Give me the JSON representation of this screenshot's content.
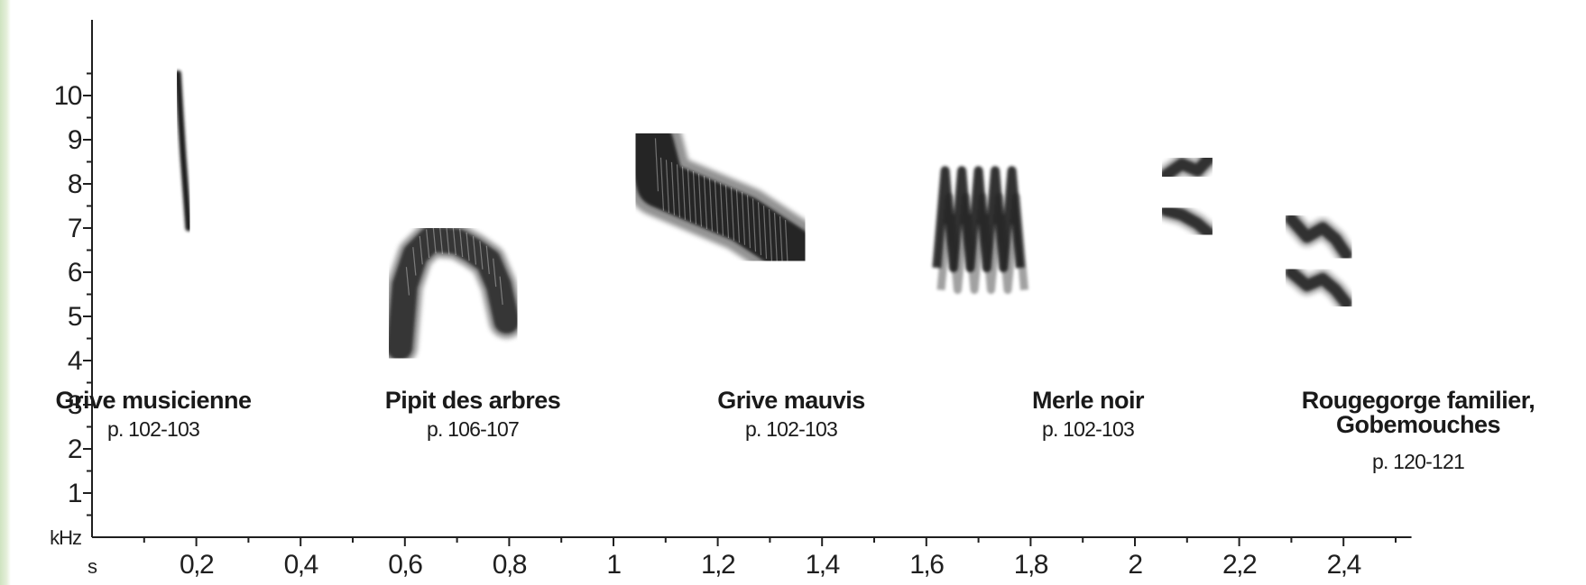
{
  "chart_data": {
    "type": "spectrogram",
    "xlabel": "s",
    "ylabel": "kHz",
    "xlim": [
      0,
      2.52
    ],
    "ylim": [
      0,
      10.5
    ],
    "x_ticks": [
      0.2,
      0.4,
      0.6,
      0.8,
      1.0,
      1.2,
      1.4,
      1.6,
      1.8,
      2.0,
      2.2,
      2.4
    ],
    "x_tick_labels": [
      "0,2",
      "0,4",
      "0,6",
      "0,8",
      "1",
      "1,2",
      "1,4",
      "1,6",
      "1,8",
      "2",
      "2,2",
      "2,4"
    ],
    "y_ticks": [
      1,
      2,
      3,
      4,
      5,
      6,
      7,
      8,
      9,
      10
    ],
    "y_tick_labels": [
      "1",
      "2",
      "3",
      "4",
      "5",
      "6",
      "7",
      "8",
      "9",
      "10"
    ],
    "grid": false,
    "series": [
      {
        "name": "Grive musicienne",
        "pages": "p. 102-103",
        "kind": "sweep",
        "points": [
          [
            0.165,
            10.5
          ],
          [
            0.17,
            9.5
          ],
          [
            0.175,
            8.6
          ],
          [
            0.18,
            7.8
          ],
          [
            0.185,
            7.0
          ]
        ],
        "width": 0.007
      },
      {
        "name": "Pipit des arbres",
        "pages": "p. 106-107",
        "kind": "arch",
        "points": [
          [
            0.59,
            4.3
          ],
          [
            0.6,
            5.7
          ],
          [
            0.62,
            6.4
          ],
          [
            0.65,
            6.75
          ],
          [
            0.7,
            6.7
          ],
          [
            0.73,
            6.5
          ],
          [
            0.76,
            6.25
          ],
          [
            0.78,
            5.7
          ],
          [
            0.795,
            4.9
          ]
        ],
        "thickness": 0.8
      },
      {
        "name": "Grive mauvis",
        "pages": "p. 102-103",
        "kind": "band",
        "points": [
          [
            1.07,
            8.9
          ],
          [
            1.09,
            8.0
          ],
          [
            1.15,
            7.7
          ],
          [
            1.25,
            7.2
          ],
          [
            1.34,
            6.5
          ]
        ],
        "thickness": 1.5
      },
      {
        "name": "Merle noir",
        "pages": "p. 102-103",
        "kind": "zigzag",
        "x_range": [
          1.62,
          1.78
        ],
        "high_khz": 8.3,
        "low_khz": 5.8,
        "cycles": 5
      },
      {
        "name": "Rougegorge familier, Gobemouches",
        "pages": "p. 120-121",
        "kind": "notes",
        "notes": [
          [
            [
              2.06,
              8.2
            ],
            [
              2.09,
              8.45
            ],
            [
              2.12,
              8.3
            ],
            [
              2.14,
              8.55
            ]
          ],
          [
            [
              2.06,
              7.4
            ],
            [
              2.09,
              7.3
            ],
            [
              2.12,
              7.1
            ],
            [
              2.14,
              6.9
            ]
          ],
          [
            [
              2.3,
              7.2
            ],
            [
              2.33,
              6.8
            ],
            [
              2.36,
              7.0
            ],
            [
              2.385,
              6.75
            ],
            [
              2.405,
              6.4
            ]
          ],
          [
            [
              2.3,
              6.0
            ],
            [
              2.33,
              5.7
            ],
            [
              2.36,
              5.85
            ],
            [
              2.385,
              5.6
            ],
            [
              2.405,
              5.3
            ]
          ]
        ]
      }
    ],
    "labels": [
      {
        "lines": [
          "Grive musicienne"
        ],
        "pages": "p. 102-103"
      },
      {
        "lines": [
          "Pipit des arbres"
        ],
        "pages": "p. 106-107"
      },
      {
        "lines": [
          "Grive mauvis"
        ],
        "pages": "p. 102-103"
      },
      {
        "lines": [
          "Merle noir"
        ],
        "pages": "p. 102-103"
      },
      {
        "lines": [
          "Rougegorge familier,",
          "Gobemouches"
        ],
        "pages": "p. 120-121"
      }
    ]
  },
  "colors": {
    "ink": "#1a1a1a",
    "axis": "#1f1f1f",
    "edge_strip": "#cfe3c0"
  }
}
